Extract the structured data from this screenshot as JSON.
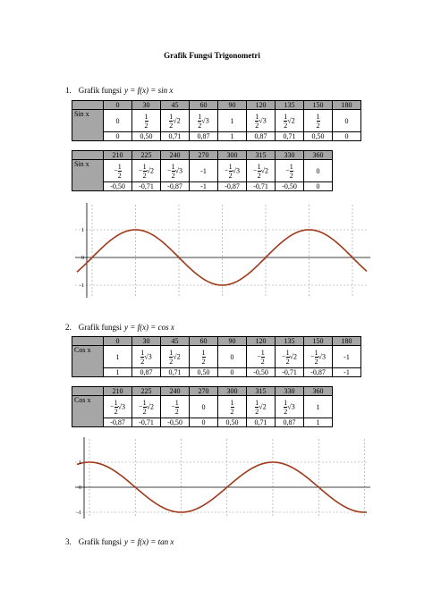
{
  "title": "Grafik Fungsi Trigonometri",
  "sections": [
    {
      "number": "1.",
      "label": "Grafik fungsi",
      "formula": "y = f(x) = sin x",
      "tables": [
        {
          "row_label": "Sin x",
          "header": [
            "0",
            "30",
            "45",
            "60",
            "90",
            "120",
            "135",
            "150",
            "180"
          ],
          "exact": [
            "0",
            {
              "num": "1",
              "den": "2"
            },
            {
              "num": "1",
              "den": "2",
              "root": "√2"
            },
            {
              "num": "1",
              "den": "2",
              "root": "√3"
            },
            "1",
            {
              "num": "1",
              "den": "2",
              "root": "√3"
            },
            {
              "num": "1",
              "den": "2",
              "root": "√2"
            },
            {
              "num": "1",
              "den": "2"
            },
            "0"
          ],
          "decimal": [
            "0",
            "0,50",
            "0,71",
            "0,87",
            "1",
            "0,87",
            "0,71",
            "0,50",
            "0"
          ]
        },
        {
          "row_label": "Sin x",
          "header": [
            "210",
            "225",
            "240",
            "270",
            "300",
            "315",
            "330",
            "360"
          ],
          "exact": [
            {
              "sign": "−",
              "num": "1",
              "den": "2"
            },
            {
              "sign": "−",
              "num": "1",
              "den": "2",
              "root": "√2"
            },
            {
              "sign": "−",
              "num": "1",
              "den": "2",
              "root": "√3"
            },
            "-1",
            {
              "sign": "−",
              "num": "1",
              "den": "2",
              "root": "√3"
            },
            {
              "sign": "−",
              "num": "1",
              "den": "2",
              "root": "√2"
            },
            {
              "sign": "−",
              "num": "1",
              "den": "2"
            },
            "0"
          ],
          "decimal": [
            "-0,50",
            "-0,71",
            "-0,87",
            "-1",
            "-0,87",
            "-0,71",
            "-0,50",
            "0"
          ]
        }
      ],
      "graph": {
        "y_labels": [
          "1",
          "0",
          "-1"
        ]
      }
    },
    {
      "number": "2.",
      "label": "Grafik fungsi",
      "formula": "y = f(x) = cos x",
      "tables": [
        {
          "row_label": "Cos x",
          "header": [
            "0",
            "30",
            "45",
            "60",
            "90",
            "120",
            "135",
            "150",
            "180"
          ],
          "exact": [
            "1",
            {
              "num": "1",
              "den": "2",
              "root": "√3"
            },
            {
              "num": "1",
              "den": "2",
              "root": "√2"
            },
            {
              "num": "1",
              "den": "2"
            },
            "0",
            {
              "sign": "−",
              "num": "1",
              "den": "2"
            },
            {
              "sign": "−",
              "num": "1",
              "den": "2",
              "root": "√2"
            },
            {
              "sign": "−",
              "num": "1",
              "den": "2",
              "root": "√3"
            },
            "-1"
          ],
          "decimal": [
            "1",
            "0,87",
            "0,71",
            "0,50",
            "0",
            "-0,50",
            "-0,71",
            "-0,87",
            "-1"
          ]
        },
        {
          "row_label": "Cos x",
          "header": [
            "210",
            "225",
            "240",
            "270",
            "300",
            "315",
            "330",
            "360"
          ],
          "exact": [
            {
              "sign": "−",
              "num": "1",
              "den": "2",
              "root": "√3"
            },
            {
              "sign": "−",
              "num": "1",
              "den": "2",
              "root": "√2"
            },
            {
              "sign": "−",
              "num": "1",
              "den": "2"
            },
            "0",
            {
              "num": "1",
              "den": "2"
            },
            {
              "num": "1",
              "den": "2",
              "root": "√2"
            },
            {
              "num": "1",
              "den": "2",
              "root": "√3"
            },
            "1"
          ],
          "decimal": [
            "-0,87",
            "-0,71",
            "-0,50",
            "0",
            "0,50",
            "0,71",
            "0,87",
            "1"
          ]
        }
      ],
      "graph": {
        "y_labels": [
          "1",
          "0",
          "-1"
        ]
      }
    },
    {
      "number": "3.",
      "label": "Grafik fungsi",
      "formula": "y = f(x) = tan x"
    }
  ]
}
